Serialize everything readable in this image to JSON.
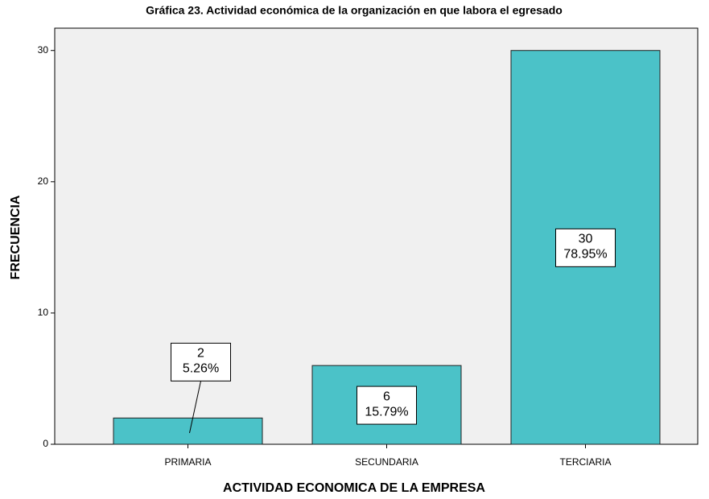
{
  "chart_data": {
    "type": "bar",
    "title": "Gráfica 23.  Actividad económica de la organización en que labora el egresado",
    "xlabel": "ACTIVIDAD ECONOMICA DE LA EMPRESA",
    "ylabel": "FRECUENCIA",
    "categories": [
      "PRIMARIA",
      "SECUNDARIA",
      "TERCIARIA"
    ],
    "values": [
      2,
      6,
      30
    ],
    "percentages": [
      5.26,
      15.79,
      78.95
    ],
    "percentage_labels": [
      "5.26%",
      "15.79%",
      "78.95%"
    ],
    "color": "#4bc2c8",
    "ylim": [
      0,
      31.7
    ],
    "yticks": [
      0,
      10,
      20,
      30
    ]
  }
}
